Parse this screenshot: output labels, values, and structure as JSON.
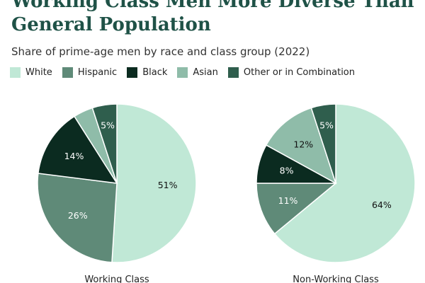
{
  "header": {
    "title": "Working Class Men More Diverse Than General Population",
    "subtitle": "Share of prime-age men by race and class group (2022)"
  },
  "chart_data": {
    "type": "pie",
    "title": "Working Class Men More Diverse Than General Population",
    "subtitle": "Share of prime-age men by race and class group (2022)",
    "legend_placement": "top",
    "categories": [
      "White",
      "Hispanic",
      "Black",
      "Asian",
      "Other or in Combination"
    ],
    "colors": [
      "#c0e8d6",
      "#5f8a78",
      "#0b2b20",
      "#8fbca9",
      "#2f5e4d"
    ],
    "label_colors": [
      "#111111",
      "#ffffff",
      "#ffffff",
      "#111111",
      "#ffffff"
    ],
    "series": [
      {
        "name": "Working Class",
        "values": [
          51,
          26,
          14,
          4,
          5
        ],
        "labels": [
          "51%",
          "26%",
          "14%",
          "",
          "5%"
        ]
      },
      {
        "name": "Non-Working Class",
        "values": [
          64,
          11,
          8,
          12,
          5
        ],
        "labels": [
          "64%",
          "11%",
          "8%",
          "12%",
          "5%"
        ]
      }
    ]
  }
}
